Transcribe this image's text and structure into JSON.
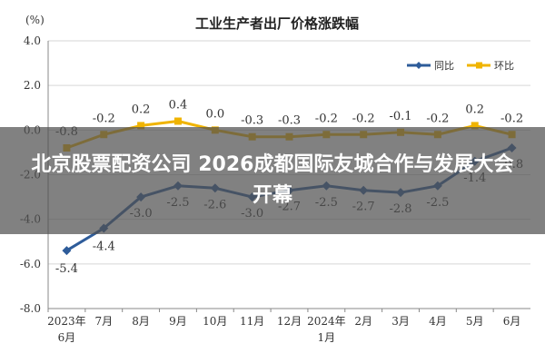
{
  "chart_data": {
    "type": "line",
    "title": "工业生产者出厂价格涨跌幅",
    "ylabel": "(%)",
    "ylim": [
      -8.0,
      4.0
    ],
    "yticks": [
      "4.0",
      "2.0",
      "0.0",
      "-2.0",
      "-4.0",
      "-6.0",
      "-8.0"
    ],
    "categories": [
      "2023年6月",
      "7月",
      "8月",
      "9月",
      "10月",
      "11月",
      "12月",
      "2024年1月",
      "2月",
      "3月",
      "4月",
      "5月",
      "6月"
    ],
    "legend_position": "top-right",
    "series": [
      {
        "name": "同比",
        "color": "#2e5c9a",
        "values": [
          -5.4,
          -4.4,
          -3.0,
          -2.5,
          -2.6,
          -3.0,
          -2.7,
          -2.5,
          -2.7,
          -2.8,
          -2.5,
          -1.4,
          -0.8
        ],
        "labels": [
          "-5.4",
          "-4.4",
          "-3.0",
          "-2.5",
          "-2.6",
          "-3.0",
          "-2.7",
          "-2.5",
          "-2.7",
          "-2.8",
          "-2.5",
          "-1.4",
          "-0.8"
        ]
      },
      {
        "name": "环比",
        "color": "#f0b400",
        "values": [
          -0.8,
          -0.2,
          0.2,
          0.4,
          0.0,
          -0.3,
          -0.3,
          -0.2,
          -0.2,
          -0.1,
          -0.2,
          0.2,
          -0.2
        ],
        "labels": [
          "-0.8",
          "-0.2",
          "0.2",
          "0.4",
          "0.0",
          "-0.3",
          "-0.3",
          "-0.2",
          "-0.2",
          "-0.1",
          "-0.2",
          "0.2",
          "-0.2"
        ]
      }
    ]
  },
  "banner": {
    "text": "北京股票配资公司 2026成都国际友城合作与发展大会开幕",
    "background": "#505050"
  }
}
